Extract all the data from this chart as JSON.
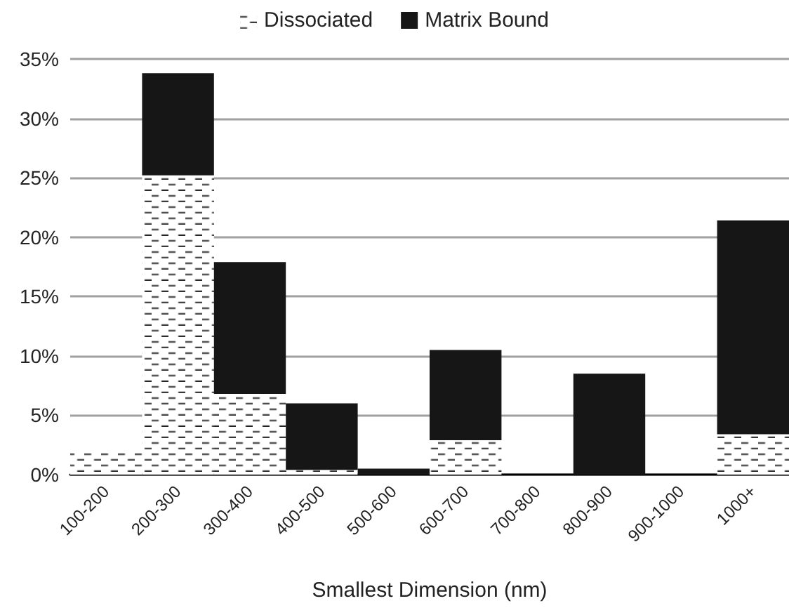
{
  "chart_data": {
    "type": "bar",
    "stacked": true,
    "xlabel": "Smallest Dimension (nm)",
    "categories": [
      "100-200",
      "200-300",
      "300-400",
      "400-500",
      "500-600",
      "600-700",
      "700-800",
      "800-900",
      "900-1000",
      "1000+"
    ],
    "series": [
      {
        "name": "Dissociated",
        "color": "#ffffff",
        "values": [
          2.0,
          25.2,
          6.8,
          0.4,
          0,
          2.9,
          0,
          0,
          0,
          3.4
        ]
      },
      {
        "name": "Matrix Bound",
        "color": "#161616",
        "values": [
          0,
          8.6,
          11.1,
          5.6,
          0.5,
          7.6,
          0,
          8.5,
          0,
          18.0
        ]
      }
    ],
    "ylim": [
      0,
      35
    ],
    "yticks": [
      {
        "value": 0,
        "label": "0%"
      },
      {
        "value": 5,
        "label": "5%"
      },
      {
        "value": 10,
        "label": "10%"
      },
      {
        "value": 15,
        "label": "15%"
      },
      {
        "value": 20,
        "label": "20%"
      },
      {
        "value": 25,
        "label": "25%"
      },
      {
        "value": 30,
        "label": "30%"
      },
      {
        "value": 35,
        "label": "35%"
      }
    ],
    "grid": "y",
    "legend": "top"
  }
}
